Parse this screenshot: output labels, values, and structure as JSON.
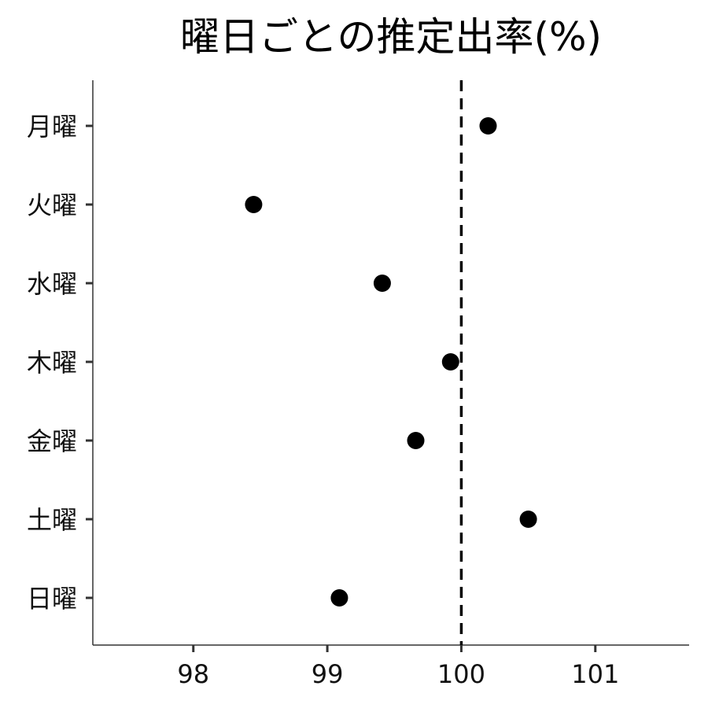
{
  "chart_data": {
    "type": "scatter",
    "title": "曜日ごとの推定出率(%)",
    "xlabel": "",
    "ylabel": "",
    "xlim": [
      97.25,
      101.7
    ],
    "x_ticks": [
      98,
      99,
      100,
      101
    ],
    "categories": [
      "月曜",
      "火曜",
      "水曜",
      "木曜",
      "金曜",
      "土曜",
      "日曜"
    ],
    "values": [
      100.2,
      98.45,
      99.41,
      99.92,
      99.66,
      100.5,
      99.09
    ],
    "reference_line": {
      "x": 100,
      "style": "dashed"
    },
    "grid": false,
    "legend": "none",
    "point_color": "#000000"
  }
}
